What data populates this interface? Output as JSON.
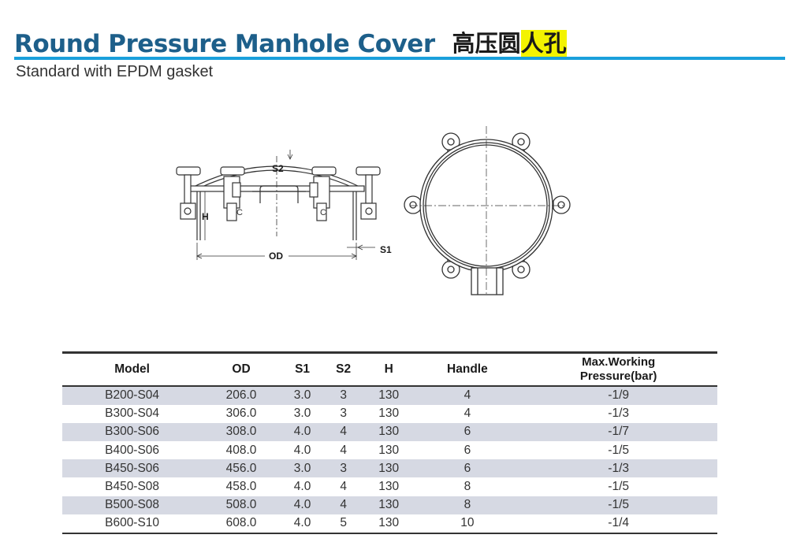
{
  "header": {
    "title_en": "Round Pressure Manhole Cover",
    "title_zh_plain": "高压圆",
    "title_zh_highlight": "人孔",
    "subtitle": "Standard with EPDM gasket"
  },
  "drawing": {
    "labels": {
      "s2": "S2",
      "h": "H",
      "od": "OD",
      "s1": "S1"
    }
  },
  "table": {
    "headers": {
      "model": "Model",
      "od": "OD",
      "s1": "S1",
      "s2": "S2",
      "h": "H",
      "handle": "Handle",
      "max_line1": "Max.Working",
      "max_line2": "Pressure(bar)"
    },
    "rows": [
      {
        "model": "B200-S04",
        "od": "206.0",
        "s1": "3.0",
        "s2": "3",
        "h": "130",
        "handle": "4",
        "max": "-1/9"
      },
      {
        "model": "B300-S04",
        "od": "306.0",
        "s1": "3.0",
        "s2": "3",
        "h": "130",
        "handle": "4",
        "max": "-1/3"
      },
      {
        "model": "B300-S06",
        "od": "308.0",
        "s1": "4.0",
        "s2": "4",
        "h": "130",
        "handle": "6",
        "max": "-1/7"
      },
      {
        "model": "B400-S06",
        "od": "408.0",
        "s1": "4.0",
        "s2": "4",
        "h": "130",
        "handle": "6",
        "max": "-1/5"
      },
      {
        "model": "B450-S06",
        "od": "456.0",
        "s1": "3.0",
        "s2": "3",
        "h": "130",
        "handle": "6",
        "max": "-1/3"
      },
      {
        "model": "B450-S08",
        "od": "458.0",
        "s1": "4.0",
        "s2": "4",
        "h": "130",
        "handle": "8",
        "max": "-1/5"
      },
      {
        "model": "B500-S08",
        "od": "508.0",
        "s1": "4.0",
        "s2": "4",
        "h": "130",
        "handle": "8",
        "max": "-1/5"
      },
      {
        "model": "B600-S10",
        "od": "608.0",
        "s1": "4.0",
        "s2": "5",
        "h": "130",
        "handle": "10",
        "max": "-1/4"
      }
    ]
  }
}
